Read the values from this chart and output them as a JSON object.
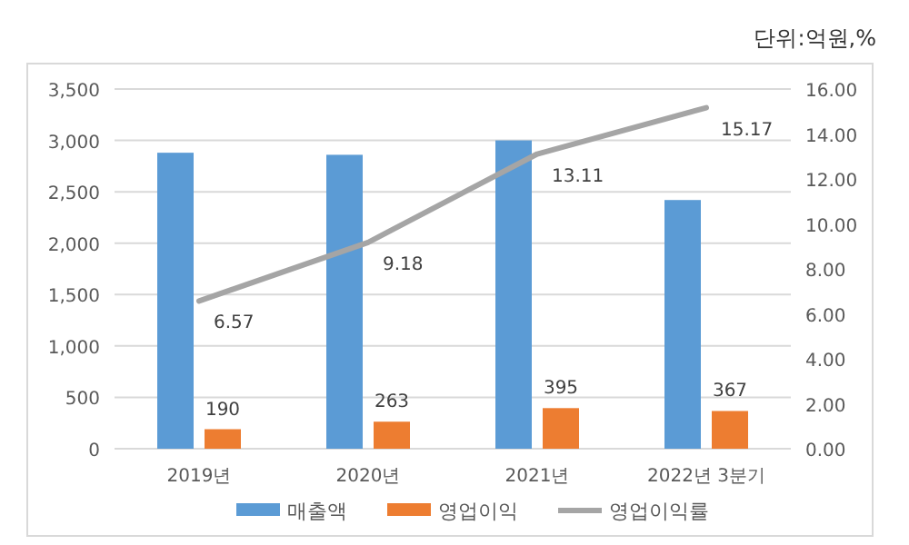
{
  "chart_data": {
    "type": "bar",
    "categories": [
      "2019년",
      "2020년",
      "2021년",
      "2022년 3분기"
    ],
    "series": [
      {
        "name": "매출액",
        "color": "#5b9bd5",
        "values": [
          2880,
          2860,
          3000,
          2420
        ]
      },
      {
        "name": "영업이익",
        "color": "#ed7d31",
        "values": [
          190,
          263,
          395,
          367
        ],
        "value_labels": [
          "190",
          "263",
          "395",
          "367"
        ]
      },
      {
        "name": "영업이익률",
        "type": "line",
        "axis": "y2",
        "color": "#a5a5a5",
        "values": [
          6.57,
          9.18,
          13.11,
          15.17
        ],
        "value_labels": [
          "6.57",
          "9.18",
          "13.11",
          "15.17"
        ]
      }
    ],
    "ylim": [
      0,
      3500
    ],
    "yticks": [
      {
        "value": 0,
        "label": "0"
      },
      {
        "value": 500,
        "label": "500"
      },
      {
        "value": 1000,
        "label": "1,000"
      },
      {
        "value": 1500,
        "label": "1,500"
      },
      {
        "value": 2000,
        "label": "2,000"
      },
      {
        "value": 2500,
        "label": "2,500"
      },
      {
        "value": 3000,
        "label": "3,000"
      },
      {
        "value": 3500,
        "label": "3,500"
      }
    ],
    "y2lim": [
      0,
      16
    ],
    "y2ticks": [
      {
        "value": 0,
        "label": "0.00"
      },
      {
        "value": 2,
        "label": "2.00"
      },
      {
        "value": 4,
        "label": "4.00"
      },
      {
        "value": 6,
        "label": "6.00"
      },
      {
        "value": 8,
        "label": "8.00"
      },
      {
        "value": 10,
        "label": "10.00"
      },
      {
        "value": 12,
        "label": "12.00"
      },
      {
        "value": 14,
        "label": "14.00"
      },
      {
        "value": 16,
        "label": "16.00"
      }
    ],
    "grid": "y",
    "legend": "bottom",
    "marker": "none",
    "annotations": [
      "단위:억원,%"
    ]
  }
}
